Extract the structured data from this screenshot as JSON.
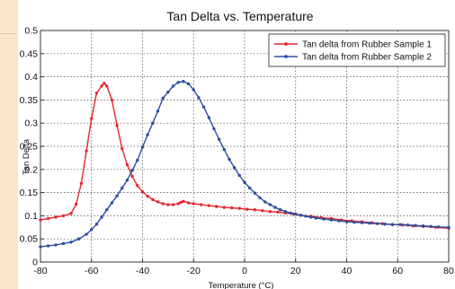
{
  "page": {
    "background": "#fbe3cc"
  },
  "chart_data": {
    "type": "line",
    "title": "Tan Delta vs. Temperature",
    "xlabel": "Temperature (°C)",
    "ylabel": "Tan Delta",
    "xlim": [
      -80,
      80
    ],
    "ylim": [
      0,
      0.5
    ],
    "x_ticks": [
      "-80",
      "-60",
      "-40",
      "-20",
      "0",
      "20",
      "40",
      "60",
      "80"
    ],
    "y_ticks": [
      "0",
      "0.05",
      "0.1",
      "0.15",
      "0.2",
      "0.25",
      "0.3",
      "0.35",
      "0.4",
      "0.45",
      "0.5"
    ],
    "grid": true,
    "legend_position": "top-right",
    "series": [
      {
        "name": "Tan delta from Rubber Sample 1",
        "color": "#e8262d",
        "marker": "dot",
        "points": [
          [
            -80,
            0.091
          ],
          [
            -77,
            0.094
          ],
          [
            -74,
            0.097
          ],
          [
            -71,
            0.1
          ],
          [
            -68,
            0.105
          ],
          [
            -66,
            0.125
          ],
          [
            -64,
            0.17
          ],
          [
            -62,
            0.24
          ],
          [
            -60,
            0.31
          ],
          [
            -58,
            0.365
          ],
          [
            -56,
            0.38
          ],
          [
            -55,
            0.386
          ],
          [
            -54,
            0.38
          ],
          [
            -52,
            0.35
          ],
          [
            -50,
            0.295
          ],
          [
            -48,
            0.245
          ],
          [
            -46,
            0.21
          ],
          [
            -44,
            0.185
          ],
          [
            -42,
            0.165
          ],
          [
            -40,
            0.152
          ],
          [
            -38,
            0.142
          ],
          [
            -36,
            0.135
          ],
          [
            -34,
            0.13
          ],
          [
            -32,
            0.126
          ],
          [
            -30,
            0.124
          ],
          [
            -28,
            0.124
          ],
          [
            -26,
            0.126
          ],
          [
            -25,
            0.129
          ],
          [
            -24,
            0.131
          ],
          [
            -22,
            0.128
          ],
          [
            -20,
            0.126
          ],
          [
            -17,
            0.124
          ],
          [
            -14,
            0.122
          ],
          [
            -11,
            0.12
          ],
          [
            -8,
            0.118
          ],
          [
            -5,
            0.117
          ],
          [
            -2,
            0.116
          ],
          [
            1,
            0.114
          ],
          [
            4,
            0.113
          ],
          [
            7,
            0.111
          ],
          [
            10,
            0.109
          ],
          [
            13,
            0.108
          ],
          [
            16,
            0.106
          ],
          [
            19,
            0.104
          ],
          [
            22,
            0.101
          ],
          [
            26,
            0.099
          ],
          [
            30,
            0.096
          ],
          [
            34,
            0.094
          ],
          [
            38,
            0.091
          ],
          [
            42,
            0.089
          ],
          [
            46,
            0.087
          ],
          [
            50,
            0.085
          ],
          [
            54,
            0.083
          ],
          [
            58,
            0.081
          ],
          [
            62,
            0.08
          ],
          [
            66,
            0.078
          ],
          [
            70,
            0.077
          ],
          [
            75,
            0.075
          ],
          [
            80,
            0.073
          ]
        ]
      },
      {
        "name": "Tan delta from Rubber Sample 2",
        "color": "#2b4ea0",
        "marker": "dot",
        "points": [
          [
            -80,
            0.033
          ],
          [
            -77,
            0.035
          ],
          [
            -74,
            0.037
          ],
          [
            -71,
            0.04
          ],
          [
            -68,
            0.043
          ],
          [
            -65,
            0.05
          ],
          [
            -62,
            0.06
          ],
          [
            -60,
            0.07
          ],
          [
            -58,
            0.082
          ],
          [
            -56,
            0.097
          ],
          [
            -54,
            0.113
          ],
          [
            -52,
            0.128
          ],
          [
            -50,
            0.143
          ],
          [
            -48,
            0.16
          ],
          [
            -46,
            0.177
          ],
          [
            -44,
            0.198
          ],
          [
            -42,
            0.22
          ],
          [
            -40,
            0.248
          ],
          [
            -38,
            0.275
          ],
          [
            -36,
            0.3
          ],
          [
            -34,
            0.326
          ],
          [
            -32,
            0.354
          ],
          [
            -30,
            0.367
          ],
          [
            -28,
            0.38
          ],
          [
            -26,
            0.388
          ],
          [
            -24,
            0.39
          ],
          [
            -22,
            0.385
          ],
          [
            -20,
            0.372
          ],
          [
            -18,
            0.355
          ],
          [
            -16,
            0.335
          ],
          [
            -14,
            0.312
          ],
          [
            -12,
            0.288
          ],
          [
            -10,
            0.265
          ],
          [
            -8,
            0.243
          ],
          [
            -6,
            0.222
          ],
          [
            -4,
            0.204
          ],
          [
            -2,
            0.187
          ],
          [
            0,
            0.172
          ],
          [
            2,
            0.16
          ],
          [
            4,
            0.149
          ],
          [
            6,
            0.139
          ],
          [
            8,
            0.13
          ],
          [
            10,
            0.124
          ],
          [
            12,
            0.118
          ],
          [
            14,
            0.113
          ],
          [
            16,
            0.109
          ],
          [
            18,
            0.106
          ],
          [
            20,
            0.104
          ],
          [
            22,
            0.101
          ],
          [
            24,
            0.099
          ],
          [
            26,
            0.097
          ],
          [
            28,
            0.095
          ],
          [
            31,
            0.093
          ],
          [
            34,
            0.091
          ],
          [
            37,
            0.089
          ],
          [
            40,
            0.087
          ],
          [
            43,
            0.086
          ],
          [
            46,
            0.085
          ],
          [
            49,
            0.084
          ],
          [
            52,
            0.083
          ],
          [
            55,
            0.082
          ],
          [
            58,
            0.081
          ],
          [
            61,
            0.081
          ],
          [
            64,
            0.08
          ],
          [
            67,
            0.079
          ],
          [
            70,
            0.078
          ],
          [
            73,
            0.077
          ],
          [
            76,
            0.076
          ],
          [
            80,
            0.075
          ]
        ]
      }
    ]
  }
}
